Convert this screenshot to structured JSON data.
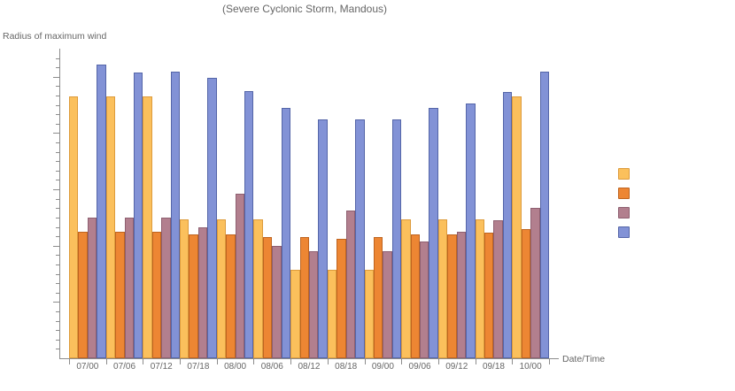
{
  "chart_data": {
    "type": "bar",
    "title": "(Severe Cyclonic Storm, Mandous)",
    "xlabel": "Date/Time",
    "ylabel": "Radius of maximum wind",
    "categories": [
      "07/00",
      "07/06",
      "07/12",
      "07/18",
      "08/00",
      "08/06",
      "08/12",
      "08/18",
      "09/00",
      "09/06",
      "09/12",
      "09/18",
      "10/00"
    ],
    "series": [
      {
        "key": "series-yellow",
        "name": "",
        "color": "#FBC05C",
        "border": "#DD9B3C",
        "values": [
          93,
          93,
          93,
          49.5,
          49.5,
          49.5,
          31.5,
          31.5,
          31.5,
          49.5,
          49.5,
          49.5,
          93
        ]
      },
      {
        "key": "series-orange",
        "name": "",
        "color": "#ED8633",
        "border": "#BE6420",
        "values": [
          45,
          45,
          45,
          44,
          44,
          43,
          43,
          42.5,
          43,
          44,
          44,
          44.5,
          46
        ]
      },
      {
        "key": "series-mauve",
        "name": "",
        "color": "#B27F8E",
        "border": "#8E5F70",
        "values": [
          50,
          50,
          50,
          46.5,
          58.5,
          40,
          38,
          52.5,
          38,
          41.5,
          45,
          49,
          53.5
        ]
      },
      {
        "key": "series-blue",
        "name": "",
        "color": "#8292D6",
        "border": "#5465A8",
        "values": [
          104.5,
          101.5,
          102,
          99.5,
          95,
          89,
          85,
          85,
          85,
          89,
          90.5,
          94.5,
          102
        ]
      }
    ],
    "ylim": [
      0,
      110
    ],
    "y_axis": {
      "labels_visible": false,
      "major_step": 20,
      "minors_per_major": 6
    },
    "grid": false,
    "legend_position": "right",
    "legend_labels_visible": false
  }
}
